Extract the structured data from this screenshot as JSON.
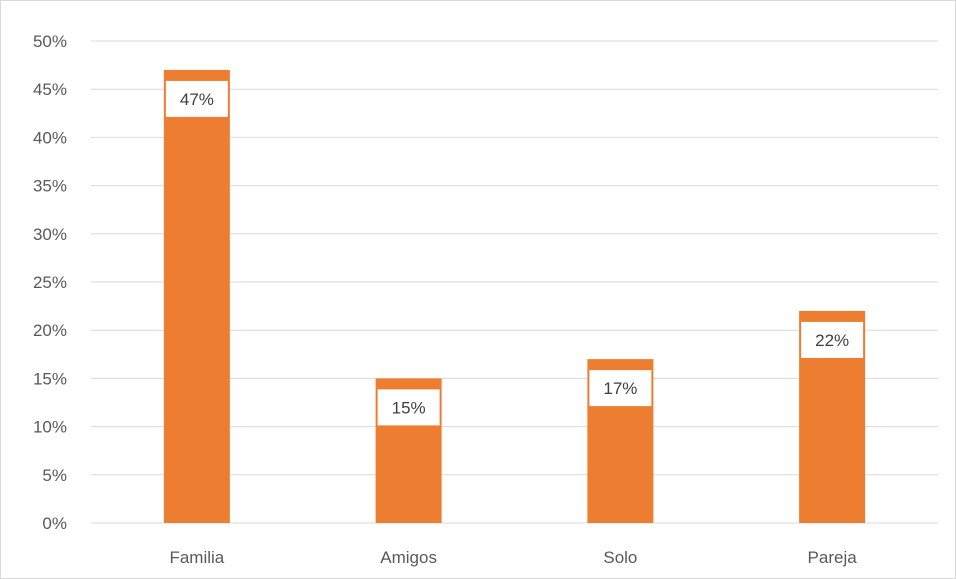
{
  "chart_data": {
    "type": "bar",
    "categories": [
      "Familia",
      "Amigos",
      "Solo",
      "Pareja"
    ],
    "values": [
      47,
      15,
      17,
      22
    ],
    "data_labels": [
      "47%",
      "15%",
      "17%",
      "22%"
    ],
    "ylim": [
      0,
      50
    ],
    "yticks": [
      0,
      5,
      10,
      15,
      20,
      25,
      30,
      35,
      40,
      45,
      50
    ],
    "ytick_labels": [
      "0%",
      "5%",
      "10%",
      "15%",
      "20%",
      "25%",
      "30%",
      "35%",
      "40%",
      "45%",
      "50%"
    ],
    "title": "",
    "xlabel": "",
    "ylabel": "",
    "grid": true,
    "legend": "none",
    "bar_color": "#ED7D31",
    "grid_color": "#d9d9d9",
    "label_box_color": "#ffffff"
  }
}
